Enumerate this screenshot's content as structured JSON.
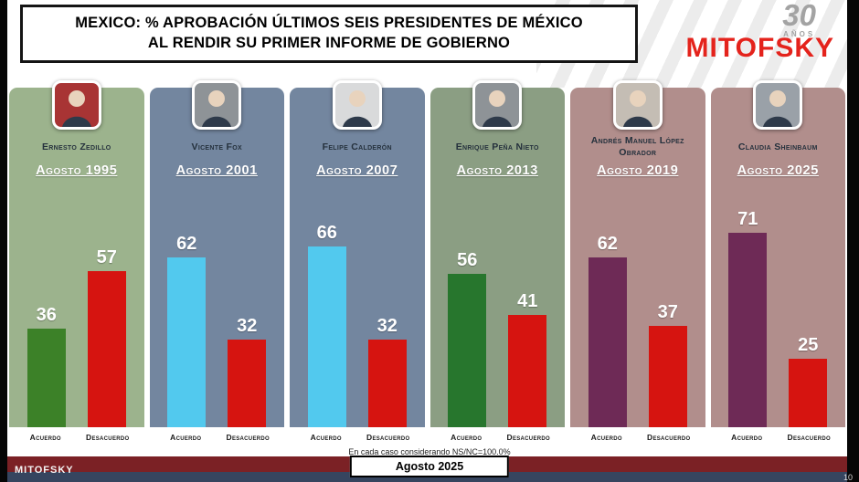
{
  "header": {
    "title_line1": "MEXICO: % APROBACIÓN ÚLTIMOS SEIS PRESIDENTES DE MÉXICO",
    "title_line2": "AL RENDIR SU PRIMER INFORME DE GOBIERNO",
    "brand": "MITOFSKY",
    "anniversary_number": "30",
    "anniversary_label": "AÑOS"
  },
  "chart_data": {
    "type": "bar",
    "title": "MEXICO: % APROBACIÓN ÚLTIMOS SEIS PRESIDENTES DE MÉXICO AL RENDIR SU PRIMER INFORME DE GOBIERNO",
    "unit": "%",
    "ylim": [
      0,
      100
    ],
    "series_labels": [
      "Acuerdo",
      "Desacuerdo"
    ],
    "desacuerdo_color": "#d61410",
    "panels": [
      {
        "president": "Ernesto Zedillo",
        "date": "Agosto 1995",
        "acuerdo": 36,
        "desacuerdo": 57,
        "panel_color": "#9cb38d",
        "acuerdo_color": "#3c8128",
        "photo_bg": "#a83434"
      },
      {
        "president": "Vicente Fox",
        "date": "Agosto 2001",
        "acuerdo": 62,
        "desacuerdo": 32,
        "panel_color": "#73869f",
        "acuerdo_color": "#52c9ee",
        "photo_bg": "#8e9397"
      },
      {
        "president": "Felipe Calderón",
        "date": "Agosto 2007",
        "acuerdo": 66,
        "desacuerdo": 32,
        "panel_color": "#73869f",
        "acuerdo_color": "#52c9ee",
        "photo_bg": "#d9dadb"
      },
      {
        "president": "Enrique Peña Nieto",
        "date": "Agosto 2013",
        "acuerdo": 56,
        "desacuerdo": 41,
        "panel_color": "#8b9e83",
        "acuerdo_color": "#27762d",
        "photo_bg": "#8e9397"
      },
      {
        "president": "Andrés Manuel López Obrador",
        "date": "Agosto 2019",
        "acuerdo": 62,
        "desacuerdo": 37,
        "panel_color": "#b18e8c",
        "acuerdo_color": "#6e2a56",
        "photo_bg": "#c4bdb4"
      },
      {
        "president": "Claudia Sheinbaum",
        "date": "Agosto 2025",
        "acuerdo": 71,
        "desacuerdo": 25,
        "panel_color": "#b18e8c",
        "acuerdo_color": "#6e2a56",
        "photo_bg": "#9aa1a8"
      }
    ]
  },
  "labels": {
    "acuerdo": "Acuerdo",
    "desacuerdo": "Desacuerdo"
  },
  "footer": {
    "note": "En cada caso considerando NS/NC=100.0%",
    "date_badge": "Agosto 2025",
    "brand": "MITOFSKY",
    "page": "10"
  }
}
